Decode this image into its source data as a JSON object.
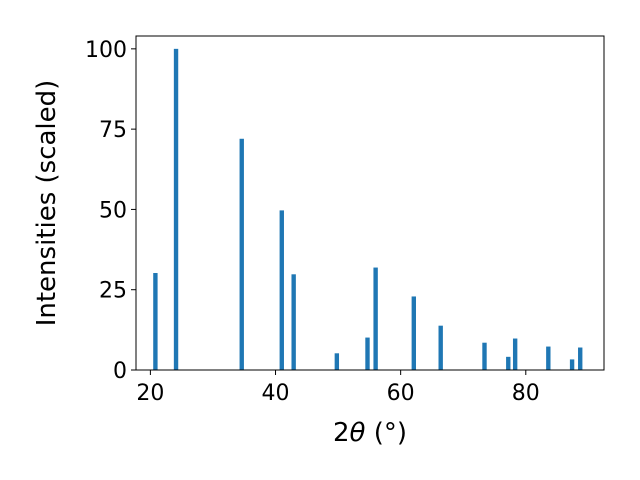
{
  "chart_data": {
    "type": "bar",
    "xlabel_prefix": "2",
    "xlabel_symbol": "θ",
    "xlabel_unit": " (°)",
    "ylabel": "Intensities (scaled)",
    "xlim": [
      17.7,
      92.5
    ],
    "ylim": [
      0,
      104
    ],
    "xticks": [
      20,
      40,
      60,
      80
    ],
    "yticks": [
      0,
      25,
      50,
      75,
      100
    ],
    "bar_width_deg": 0.7,
    "bar_color": "#1f77b4",
    "points": [
      {
        "x": 20.8,
        "y": 30.2
      },
      {
        "x": 24.1,
        "y": 100
      },
      {
        "x": 34.6,
        "y": 72
      },
      {
        "x": 41.0,
        "y": 49.7
      },
      {
        "x": 42.9,
        "y": 29.8
      },
      {
        "x": 49.8,
        "y": 5.2
      },
      {
        "x": 54.7,
        "y": 10.1
      },
      {
        "x": 56.0,
        "y": 31.9
      },
      {
        "x": 62.1,
        "y": 22.9
      },
      {
        "x": 66.4,
        "y": 13.8
      },
      {
        "x": 73.4,
        "y": 8.5
      },
      {
        "x": 77.2,
        "y": 4.1
      },
      {
        "x": 78.3,
        "y": 9.8
      },
      {
        "x": 83.6,
        "y": 7.3
      },
      {
        "x": 87.4,
        "y": 3.3
      },
      {
        "x": 88.7,
        "y": 7.0
      }
    ]
  }
}
